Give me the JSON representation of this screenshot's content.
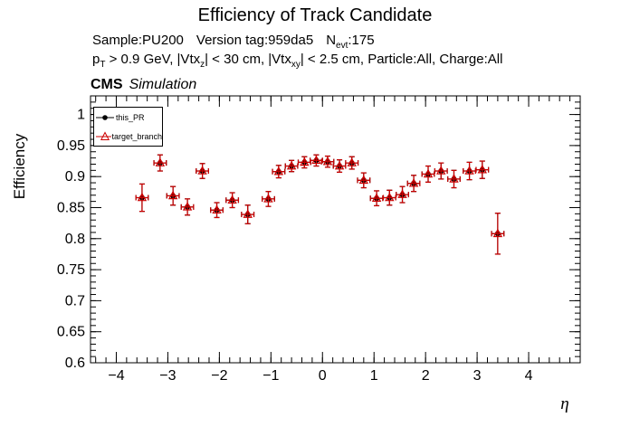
{
  "title": "Efficiency of Track Candidate",
  "header": {
    "sample": "Sample:PU200",
    "version": "Version tag:959da5",
    "nevt_label": "N",
    "nevt_sub": "evt",
    "nevt_value": ":175",
    "cuts_p": "p",
    "cuts_p_sub": "T",
    "cuts_seg1": " > 0.9 GeV, |Vtx",
    "cuts_z_sub": "z",
    "cuts_seg2": "| < 30 cm, |Vtx",
    "cuts_xy_sub": "xy",
    "cuts_seg3": "| < 2.5 cm, Particle:All, Charge:All"
  },
  "cms_label": "CMS",
  "cms_sublabel": "Simulation",
  "legend": {
    "position": "top-left",
    "entries": [
      {
        "label": "this_PR",
        "marker": "circle",
        "color": "#000000"
      },
      {
        "label": "target_branch",
        "marker": "triangle",
        "color": "#cc0000"
      }
    ]
  },
  "chart_data": {
    "type": "scatter",
    "title": "Efficiency of Track Candidate",
    "xlabel": "η",
    "ylabel": "Efficiency",
    "xlim": [
      -4.5,
      5.0
    ],
    "ylim": [
      0.6,
      1.03
    ],
    "xticks": [
      -4,
      -3,
      -2,
      -1,
      0,
      1,
      2,
      3,
      4
    ],
    "yticks": [
      0.6,
      0.65,
      0.7,
      0.75,
      0.8,
      0.85,
      0.9,
      0.95,
      1
    ],
    "x_minor_step": 0.2,
    "y_minor_step": 0.01,
    "grid": false,
    "legend_position": "top-left",
    "series": [
      {
        "name": "this_PR",
        "marker": "circle",
        "color": "#000000",
        "ex": 0.12,
        "points": [
          {
            "x": -3.5,
            "y": 0.866,
            "ey": 0.022
          },
          {
            "x": -3.15,
            "y": 0.922,
            "ey": 0.013
          },
          {
            "x": -2.9,
            "y": 0.869,
            "ey": 0.015
          },
          {
            "x": -2.62,
            "y": 0.851,
            "ey": 0.013
          },
          {
            "x": -2.33,
            "y": 0.909,
            "ey": 0.012
          },
          {
            "x": -2.05,
            "y": 0.846,
            "ey": 0.012
          },
          {
            "x": -1.75,
            "y": 0.862,
            "ey": 0.012
          },
          {
            "x": -1.45,
            "y": 0.839,
            "ey": 0.015
          },
          {
            "x": -1.05,
            "y": 0.864,
            "ey": 0.012
          },
          {
            "x": -0.85,
            "y": 0.908,
            "ey": 0.01
          },
          {
            "x": -0.6,
            "y": 0.917,
            "ey": 0.009
          },
          {
            "x": -0.35,
            "y": 0.923,
            "ey": 0.009
          },
          {
            "x": -0.12,
            "y": 0.926,
            "ey": 0.009
          },
          {
            "x": 0.1,
            "y": 0.924,
            "ey": 0.009
          },
          {
            "x": 0.33,
            "y": 0.917,
            "ey": 0.01
          },
          {
            "x": 0.57,
            "y": 0.922,
            "ey": 0.01
          },
          {
            "x": 0.8,
            "y": 0.894,
            "ey": 0.012
          },
          {
            "x": 1.05,
            "y": 0.865,
            "ey": 0.012
          },
          {
            "x": 1.3,
            "y": 0.866,
            "ey": 0.012
          },
          {
            "x": 1.55,
            "y": 0.871,
            "ey": 0.013
          },
          {
            "x": 1.77,
            "y": 0.889,
            "ey": 0.013
          },
          {
            "x": 2.05,
            "y": 0.904,
            "ey": 0.013
          },
          {
            "x": 2.3,
            "y": 0.909,
            "ey": 0.013
          },
          {
            "x": 2.55,
            "y": 0.896,
            "ey": 0.014
          },
          {
            "x": 2.85,
            "y": 0.909,
            "ey": 0.014
          },
          {
            "x": 3.1,
            "y": 0.911,
            "ey": 0.014
          },
          {
            "x": 3.4,
            "y": 0.808,
            "ey": 0.033
          }
        ]
      },
      {
        "name": "target_branch",
        "marker": "triangle",
        "color": "#cc0000",
        "ex": 0.12,
        "points": [
          {
            "x": -3.5,
            "y": 0.866,
            "ey": 0.022
          },
          {
            "x": -3.15,
            "y": 0.922,
            "ey": 0.013
          },
          {
            "x": -2.9,
            "y": 0.869,
            "ey": 0.015
          },
          {
            "x": -2.62,
            "y": 0.851,
            "ey": 0.013
          },
          {
            "x": -2.33,
            "y": 0.909,
            "ey": 0.012
          },
          {
            "x": -2.05,
            "y": 0.846,
            "ey": 0.012
          },
          {
            "x": -1.75,
            "y": 0.862,
            "ey": 0.012
          },
          {
            "x": -1.45,
            "y": 0.839,
            "ey": 0.015
          },
          {
            "x": -1.05,
            "y": 0.864,
            "ey": 0.012
          },
          {
            "x": -0.85,
            "y": 0.908,
            "ey": 0.01
          },
          {
            "x": -0.6,
            "y": 0.917,
            "ey": 0.009
          },
          {
            "x": -0.35,
            "y": 0.923,
            "ey": 0.009
          },
          {
            "x": -0.12,
            "y": 0.926,
            "ey": 0.009
          },
          {
            "x": 0.1,
            "y": 0.924,
            "ey": 0.009
          },
          {
            "x": 0.33,
            "y": 0.917,
            "ey": 0.01
          },
          {
            "x": 0.57,
            "y": 0.922,
            "ey": 0.01
          },
          {
            "x": 0.8,
            "y": 0.894,
            "ey": 0.012
          },
          {
            "x": 1.05,
            "y": 0.865,
            "ey": 0.012
          },
          {
            "x": 1.3,
            "y": 0.866,
            "ey": 0.012
          },
          {
            "x": 1.55,
            "y": 0.871,
            "ey": 0.013
          },
          {
            "x": 1.77,
            "y": 0.889,
            "ey": 0.013
          },
          {
            "x": 2.05,
            "y": 0.904,
            "ey": 0.013
          },
          {
            "x": 2.3,
            "y": 0.909,
            "ey": 0.013
          },
          {
            "x": 2.55,
            "y": 0.896,
            "ey": 0.014
          },
          {
            "x": 2.85,
            "y": 0.909,
            "ey": 0.014
          },
          {
            "x": 3.1,
            "y": 0.911,
            "ey": 0.014
          },
          {
            "x": 3.4,
            "y": 0.808,
            "ey": 0.033
          }
        ]
      }
    ]
  }
}
